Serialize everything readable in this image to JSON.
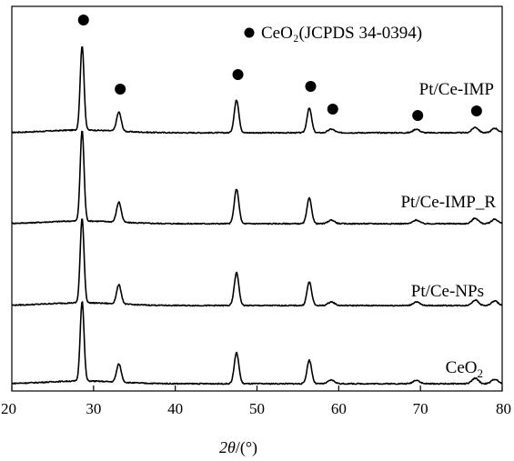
{
  "chart_data": {
    "type": "line",
    "xlabel": "2θ/(°)",
    "xlabel_parts": {
      "var": "2",
      "theta": "θ",
      "unit": "/(°)"
    },
    "xlim": [
      20,
      80
    ],
    "xticks": [
      20,
      30,
      40,
      50,
      60,
      70,
      80
    ],
    "y_axis": "stacked intensity (arbitrary units, no ticks)",
    "grid": false,
    "legend": {
      "marker": "filled-circle",
      "text": "CeO₂(JCPDS 34-0394)",
      "placement": "top-right"
    },
    "reference_peaks_2theta": [
      28.6,
      33.1,
      47.5,
      56.4,
      59.1,
      69.5,
      76.7
    ],
    "series": [
      {
        "name": "Pt/Ce-IMP",
        "peaks": [
          {
            "x": 28.6,
            "h": 0.93
          },
          {
            "x": 33.1,
            "h": 0.21
          },
          {
            "x": 47.5,
            "h": 0.36
          },
          {
            "x": 56.4,
            "h": 0.27
          },
          {
            "x": 59.1,
            "h": 0.04
          },
          {
            "x": 69.5,
            "h": 0.04
          },
          {
            "x": 76.7,
            "h": 0.06
          },
          {
            "x": 79.1,
            "h": 0.05
          }
        ]
      },
      {
        "name": "Pt/Ce-IMP_R",
        "peaks": [
          {
            "x": 28.6,
            "h": 1.0
          },
          {
            "x": 33.1,
            "h": 0.22
          },
          {
            "x": 47.5,
            "h": 0.38
          },
          {
            "x": 56.4,
            "h": 0.28
          },
          {
            "x": 59.1,
            "h": 0.04
          },
          {
            "x": 69.5,
            "h": 0.04
          },
          {
            "x": 76.7,
            "h": 0.06
          },
          {
            "x": 79.1,
            "h": 0.05
          }
        ]
      },
      {
        "name": "Pt/Ce-NPs",
        "peaks": [
          {
            "x": 28.6,
            "h": 0.93
          },
          {
            "x": 33.1,
            "h": 0.21
          },
          {
            "x": 47.5,
            "h": 0.36
          },
          {
            "x": 56.4,
            "h": 0.26
          },
          {
            "x": 59.1,
            "h": 0.04
          },
          {
            "x": 69.5,
            "h": 0.04
          },
          {
            "x": 76.7,
            "h": 0.06
          },
          {
            "x": 79.1,
            "h": 0.05
          }
        ]
      },
      {
        "name": "CeO₂",
        "name_parts": {
          "base": "CeO",
          "sub": "2"
        },
        "peaks": [
          {
            "x": 28.6,
            "h": 0.88
          },
          {
            "x": 33.1,
            "h": 0.2
          },
          {
            "x": 47.5,
            "h": 0.34
          },
          {
            "x": 56.4,
            "h": 0.26
          },
          {
            "x": 59.1,
            "h": 0.04
          },
          {
            "x": 69.5,
            "h": 0.04
          },
          {
            "x": 76.7,
            "h": 0.06
          },
          {
            "x": 79.1,
            "h": 0.05
          }
        ]
      }
    ]
  }
}
